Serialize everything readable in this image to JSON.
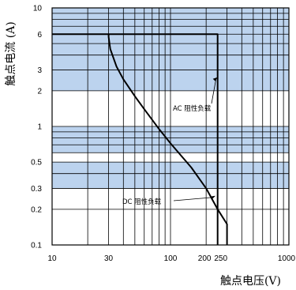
{
  "chart_data": {
    "type": "line",
    "title": "",
    "xlabel": "触点电压(V)",
    "ylabel": "触点电流 (A)",
    "xscale": "log",
    "yscale": "log",
    "xlim": [
      10,
      1000
    ],
    "ylim": [
      0.1,
      10
    ],
    "grid": true,
    "x_tick_labels": [
      {
        "value": 10,
        "label": "10"
      },
      {
        "value": 30,
        "label": "30"
      },
      {
        "value": 100,
        "label": "100"
      },
      {
        "value": 200,
        "label": "200"
      },
      {
        "value": 250,
        "label": "250"
      },
      {
        "value": 1000,
        "label": "1000"
      }
    ],
    "y_tick_labels": [
      {
        "value": 10,
        "label": "10"
      },
      {
        "value": 6,
        "label": "6"
      },
      {
        "value": 3,
        "label": "3"
      },
      {
        "value": 2,
        "label": "2"
      },
      {
        "value": 1,
        "label": "1"
      },
      {
        "value": 0.5,
        "label": "0.5"
      },
      {
        "value": 0.3,
        "label": "0.3"
      },
      {
        "value": 0.2,
        "label": "0.2"
      },
      {
        "value": 0.1,
        "label": "0.1"
      }
    ],
    "shaded_bands": [
      {
        "from": 6,
        "to": 10
      },
      {
        "from": 2,
        "to": 6
      },
      {
        "from": 0.6,
        "to": 1
      },
      {
        "from": 0.3,
        "to": 0.5
      }
    ],
    "band_color": "#bcd3ee",
    "line_color": "#000000",
    "series": [
      {
        "name": "AC 阻性负载",
        "x": [
          10,
          250,
          250
        ],
        "y": [
          6,
          6,
          0.1
        ]
      },
      {
        "name": "DC 阻性负载",
        "x": [
          30,
          30,
          31,
          35,
          40,
          50,
          60,
          80,
          100,
          150,
          200,
          250,
          300,
          300
        ],
        "y": [
          6,
          5.7,
          4.5,
          3.2,
          2.5,
          1.8,
          1.4,
          0.95,
          0.72,
          0.45,
          0.3,
          0.2,
          0.15,
          0.1
        ]
      }
    ],
    "annotations": [
      {
        "text": "AC 阻性负载",
        "series": 0
      },
      {
        "text": "DC 阻性负载",
        "series": 1
      }
    ]
  }
}
